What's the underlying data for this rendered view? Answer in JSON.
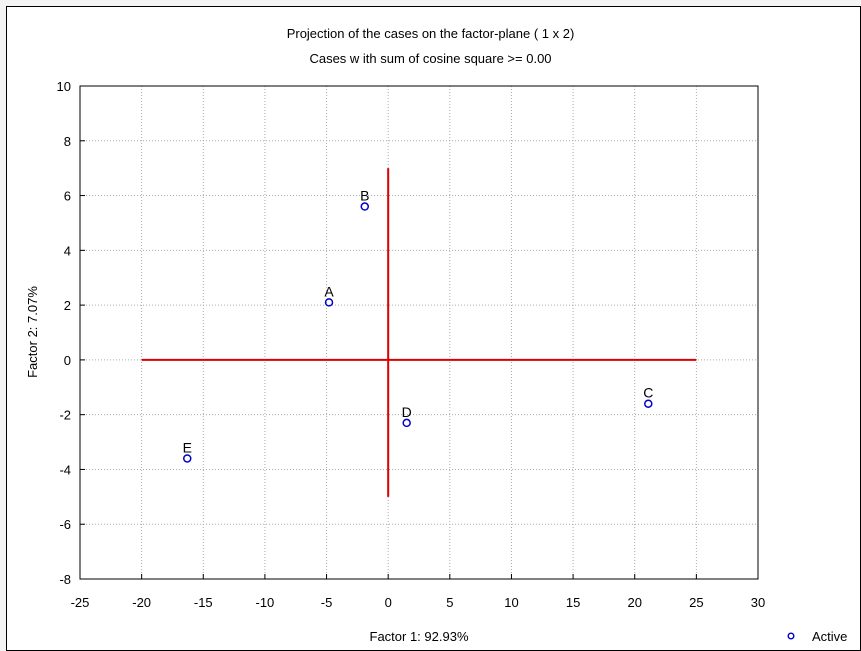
{
  "chart_data": {
    "type": "scatter",
    "title": "Projection of the cases on the factor-plane (  1 x   2)",
    "subtitle": "Cases w ith sum of cosine square >=  0.00",
    "xlabel": "Factor 1: 92.93%",
    "ylabel": "Factor 2:  7.07%",
    "xlim": [
      -25,
      30
    ],
    "ylim": [
      -8,
      10
    ],
    "xticks": [
      -25,
      -20,
      -15,
      -10,
      -5,
      0,
      5,
      10,
      15,
      20,
      25,
      30
    ],
    "yticks": [
      -8,
      -6,
      -4,
      -2,
      0,
      2,
      4,
      6,
      8,
      10
    ],
    "grid": true,
    "legend": {
      "position": "bottom-right",
      "entries": [
        "Active"
      ]
    },
    "series": [
      {
        "name": "Active",
        "color": "#0000cc",
        "marker": "circle-open",
        "points": [
          {
            "label": "A",
            "x": -4.8,
            "y": 2.1
          },
          {
            "label": "B",
            "x": -1.9,
            "y": 5.6
          },
          {
            "label": "C",
            "x": 21.1,
            "y": -1.6
          },
          {
            "label": "D",
            "x": 1.5,
            "y": -2.3
          },
          {
            "label": "E",
            "x": -16.3,
            "y": -3.6
          }
        ]
      }
    ],
    "reference_lines": {
      "color": "#dd0000",
      "horizontal": {
        "y": 0,
        "x_from": -20,
        "x_to": 25
      },
      "vertical": {
        "x": 0,
        "y_from": -5,
        "y_to": 7
      }
    }
  }
}
